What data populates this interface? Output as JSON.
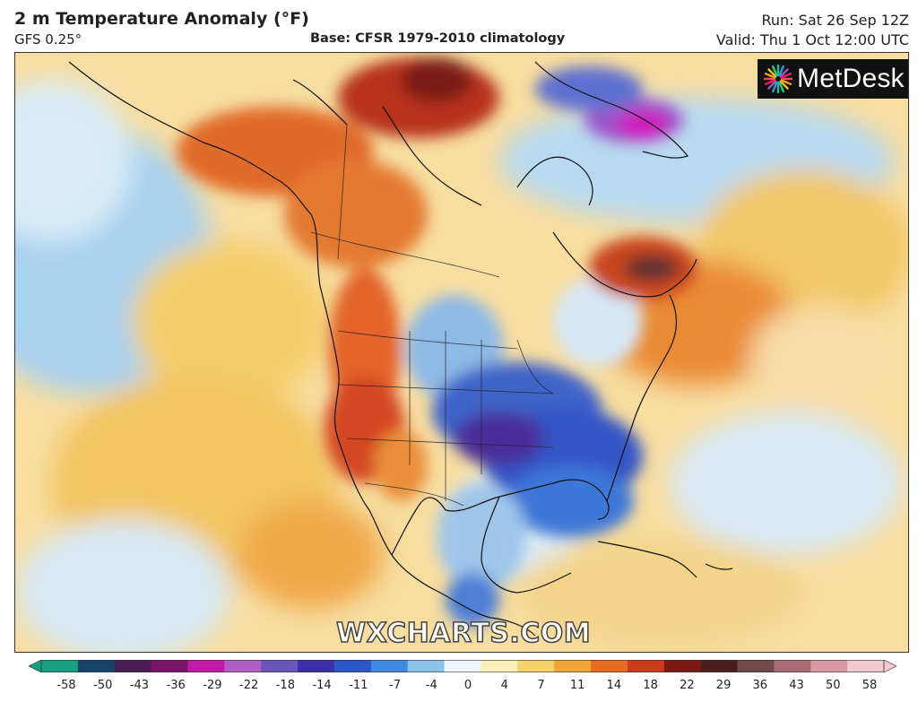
{
  "header": {
    "title": "2 m Temperature Anomaly (°F)",
    "model": "GFS 0.25°",
    "base": "Base: CFSR 1979-2010 climatology",
    "run": "Run: Sat 26 Sep 12Z",
    "valid": "Valid: Thu 1 Oct 12:00 UTC"
  },
  "logo": {
    "text": "MetDesk",
    "icon": "metdesk-starburst-icon"
  },
  "watermark": "WXCHARTS.COM",
  "legend": {
    "ticks": [
      "-58",
      "-50",
      "-43",
      "-36",
      "-29",
      "-22",
      "-18",
      "-14",
      "-11",
      "-7",
      "-4",
      "0",
      "4",
      "7",
      "11",
      "14",
      "18",
      "22",
      "29",
      "36",
      "43",
      "50",
      "58"
    ],
    "colors": [
      "#1a9e80",
      "#17436b",
      "#4a1d54",
      "#7a1466",
      "#c21aa8",
      "#b05dc4",
      "#6a55b9",
      "#3d2fa8",
      "#2e57c8",
      "#3f8ae0",
      "#8ec3ec",
      "#eef6fb",
      "#fbeeb8",
      "#f6d36a",
      "#f0a637",
      "#e56d22",
      "#cc3b1b",
      "#7a1a12",
      "#4a1e1e",
      "#6e4a4a",
      "#a66b74",
      "#d79aa4",
      "#f2c9cf"
    ]
  }
}
